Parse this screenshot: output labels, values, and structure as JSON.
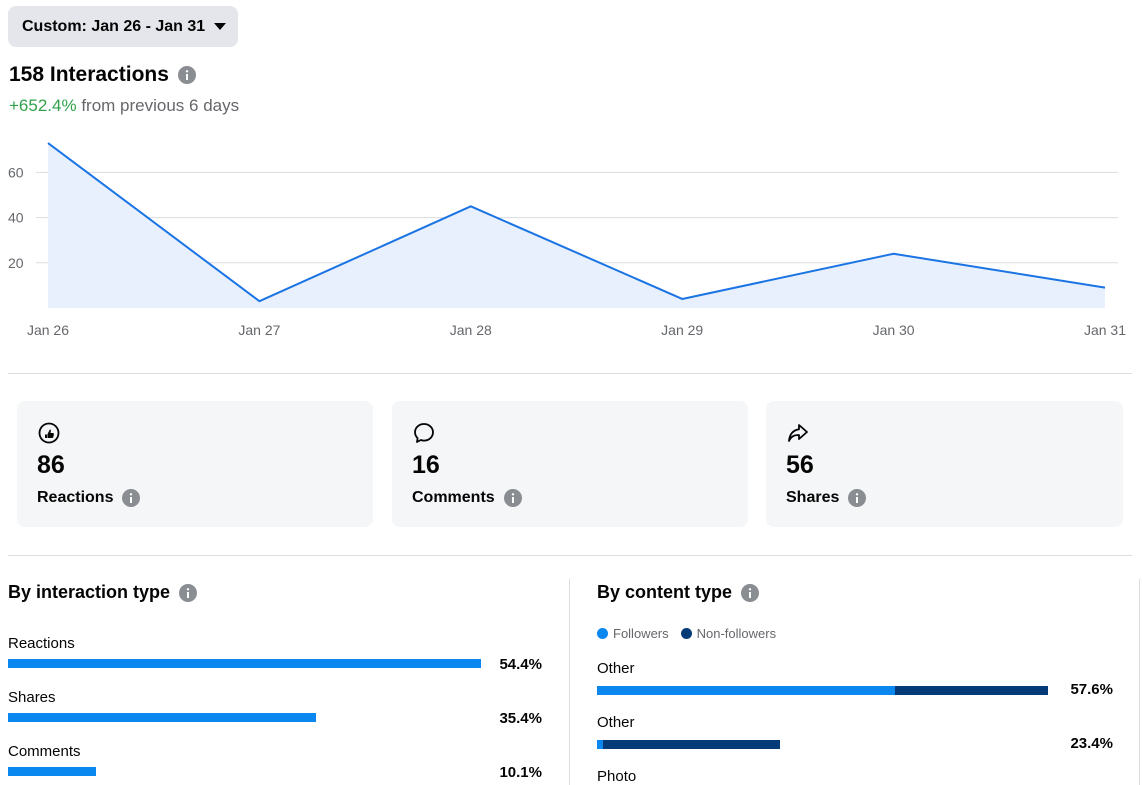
{
  "date_picker": {
    "label": "Custom: Jan 26 - Jan 31"
  },
  "summary": {
    "total": "158 Interactions",
    "change": "+652.4%",
    "change_suffix": "from previous 6 days"
  },
  "chart_data": {
    "type": "area",
    "x": [
      "Jan 26",
      "Jan 27",
      "Jan 28",
      "Jan 29",
      "Jan 30",
      "Jan 31"
    ],
    "series": [
      {
        "values": [
          73,
          3,
          45,
          4,
          24,
          9
        ]
      }
    ],
    "yticks": [
      20,
      40,
      60
    ],
    "ylim": [
      0,
      73
    ],
    "grid": true,
    "colors": {
      "line": "#1b74e4",
      "fill": "#e7f0fc",
      "grid": "#dadde1"
    }
  },
  "cards": [
    {
      "icon": "reaction-icon",
      "value": "86",
      "label": "Reactions"
    },
    {
      "icon": "comment-icon",
      "value": "16",
      "label": "Comments"
    },
    {
      "icon": "share-icon",
      "value": "56",
      "label": "Shares"
    }
  ],
  "interaction_type": {
    "title": "By interaction type",
    "rows": [
      {
        "label": "Reactions",
        "pct": "54.4%",
        "value": 54.4
      },
      {
        "label": "Shares",
        "pct": "35.4%",
        "value": 35.4
      },
      {
        "label": "Comments",
        "pct": "10.1%",
        "value": 10.1
      }
    ]
  },
  "content_type": {
    "title": "By content type",
    "legend": {
      "followers": "Followers",
      "non_followers": "Non-followers"
    },
    "rows": [
      {
        "label": "Other",
        "pct": "57.6%",
        "followers": 0.38,
        "non_followers": 0.196
      },
      {
        "label": "Other",
        "pct": "23.4%",
        "followers": 0.008,
        "non_followers": 0.226
      },
      {
        "label": "Photo"
      }
    ]
  },
  "colors": {
    "accent": "#0a88ef",
    "non_followers": "#053a78",
    "positive": "#31a24c"
  }
}
